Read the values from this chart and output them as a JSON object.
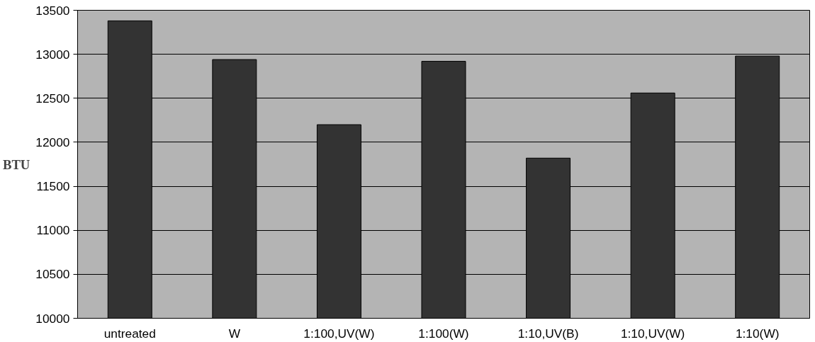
{
  "chart_data": {
    "type": "bar",
    "ylabel": "BTU",
    "categories": [
      "untreated",
      "W",
      "1:100,UV(W)",
      "1:100(W)",
      "1:10,UV(B)",
      "1:10,UV(W)",
      "1:10(W)"
    ],
    "values": [
      13380,
      12940,
      12200,
      12920,
      11820,
      12560,
      12980
    ],
    "color": "#333333",
    "ylim": [
      10000,
      13500
    ],
    "yticks": [
      10000,
      10500,
      11000,
      11500,
      12000,
      12500,
      13000,
      13500
    ],
    "grid": "y"
  }
}
